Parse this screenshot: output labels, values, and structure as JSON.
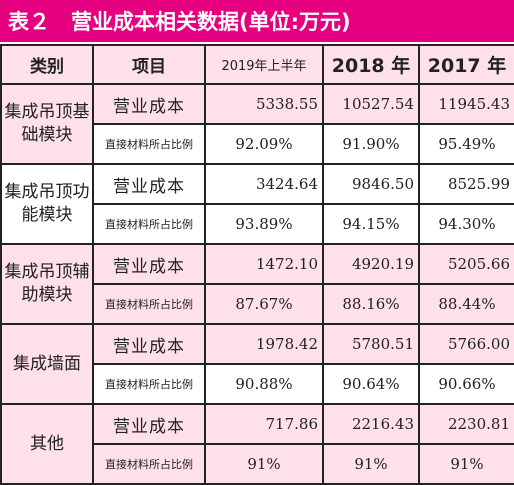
{
  "title": "表２　营业成本相关数据(单位:万元)",
  "headers": [
    "类别",
    "项目",
    "2019年上半年",
    "2018 年",
    "2017 年"
  ],
  "groups": [
    {
      "category": "集成吊顶基础模块",
      "rows": [
        {
          "item": "营业成本",
          "values": [
            "5338.55",
            "10527.54",
            "11945.43"
          ]
        },
        {
          "item": "直接材料所占比例",
          "values": [
            "92.09%",
            "91.90%",
            "95.49%"
          ]
        }
      ]
    },
    {
      "category": "集成吊顶功能模块",
      "rows": [
        {
          "item": "营业成本",
          "values": [
            "3424.64",
            "9846.50",
            "8525.99"
          ]
        },
        {
          "item": "直接材料所占比例",
          "values": [
            "93.89%",
            "94.15%",
            "94.30%"
          ]
        }
      ]
    },
    {
      "category": "集成吊顶辅助模块",
      "rows": [
        {
          "item": "营业成本",
          "values": [
            "1472.10",
            "4920.19",
            "5205.66"
          ]
        },
        {
          "item": "直接材料所占比例",
          "values": [
            "87.67%",
            "88.16%",
            "88.44%"
          ]
        }
      ]
    },
    {
      "category": "集成墙面",
      "rows": [
        {
          "item": "营业成本",
          "values": [
            "1978.42",
            "5780.51",
            "5766.00"
          ]
        },
        {
          "item": "直接材料所占比例",
          "values": [
            "90.88%",
            "90.64%",
            "90.66%"
          ]
        }
      ]
    },
    {
      "category": "其他",
      "rows": [
        {
          "item": "营业成本",
          "values": [
            "717.86",
            "2216.43",
            "2230.81"
          ]
        },
        {
          "item": "直接材料所占比例",
          "values": [
            "91%",
            "91%",
            "91%"
          ]
        }
      ]
    }
  ]
}
